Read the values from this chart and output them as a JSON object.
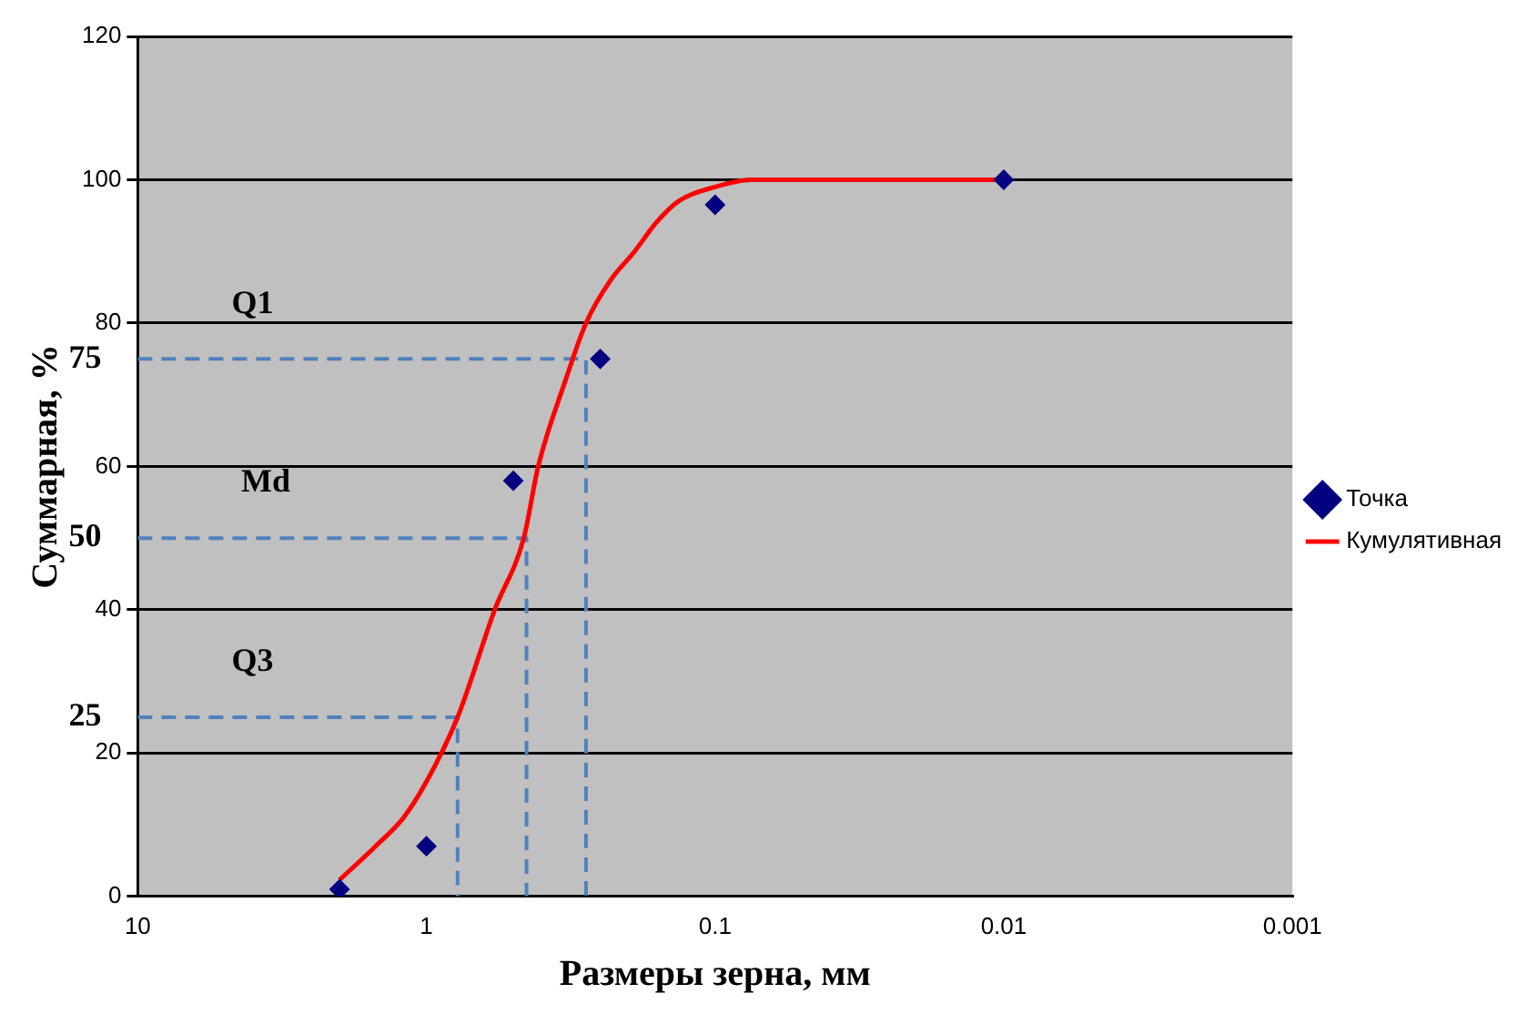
{
  "chart_data": {
    "type": "scatter",
    "xlabel": "Размеры зерна, мм",
    "ylabel": "Суммарная, %",
    "log": "x",
    "xlim": [
      10,
      0.001
    ],
    "xticks": [
      10,
      1,
      0.1,
      0.01,
      0.001
    ],
    "ylim": [
      0,
      120
    ],
    "yticks": [
      0,
      20,
      40,
      60,
      80,
      100,
      120
    ],
    "grid": "y",
    "legend": "right",
    "series": [
      {
        "name": "Точка",
        "marker": "diamond",
        "color": "#000080",
        "x": [
          2,
          1,
          0.5,
          0.25,
          0.1,
          0.01
        ],
        "values": [
          1,
          7,
          58,
          75,
          96.5,
          100
        ]
      },
      {
        "name": "Кумулятивная",
        "type": "line",
        "marker": "none",
        "color": "#ff0000",
        "x": [
          2,
          1.5,
          1.2,
          1,
          0.78,
          0.58,
          0.46,
          0.41,
          0.33,
          0.28,
          0.23,
          0.19,
          0.16,
          0.134,
          0.1,
          0.075,
          0.05,
          0.01
        ],
        "values": [
          2.3,
          7,
          11,
          16,
          25,
          40,
          50,
          60,
          72,
          80,
          86,
          90,
          94,
          97,
          99,
          100,
          100,
          100
        ]
      },
      {
        "type": "line",
        "line_style": "dashed",
        "marker": "none",
        "color": "#4f81bd",
        "x": [
          10,
          0.78,
          0.78
        ],
        "values": [
          25,
          25,
          0
        ]
      },
      {
        "type": "line",
        "line_style": "dashed",
        "marker": "none",
        "color": "#4f81bd",
        "x": [
          10,
          0.45,
          0.45
        ],
        "values": [
          50,
          50,
          0
        ]
      },
      {
        "type": "line",
        "line_style": "dashed",
        "marker": "none",
        "color": "#4f81bd",
        "x": [
          10,
          0.28,
          0.28
        ],
        "values": [
          75,
          75,
          0
        ]
      }
    ],
    "annotations": [
      {
        "text": "Q1",
        "x": 4,
        "y": 75
      },
      {
        "text": "Md",
        "x": 3.6,
        "y": 50
      },
      {
        "text": "Q3",
        "x": 4,
        "y": 25
      },
      {
        "text": "75",
        "x": 10,
        "y": 75
      },
      {
        "text": "50",
        "x": 10,
        "y": 50
      },
      {
        "text": "25",
        "x": 10,
        "y": 25
      }
    ]
  }
}
